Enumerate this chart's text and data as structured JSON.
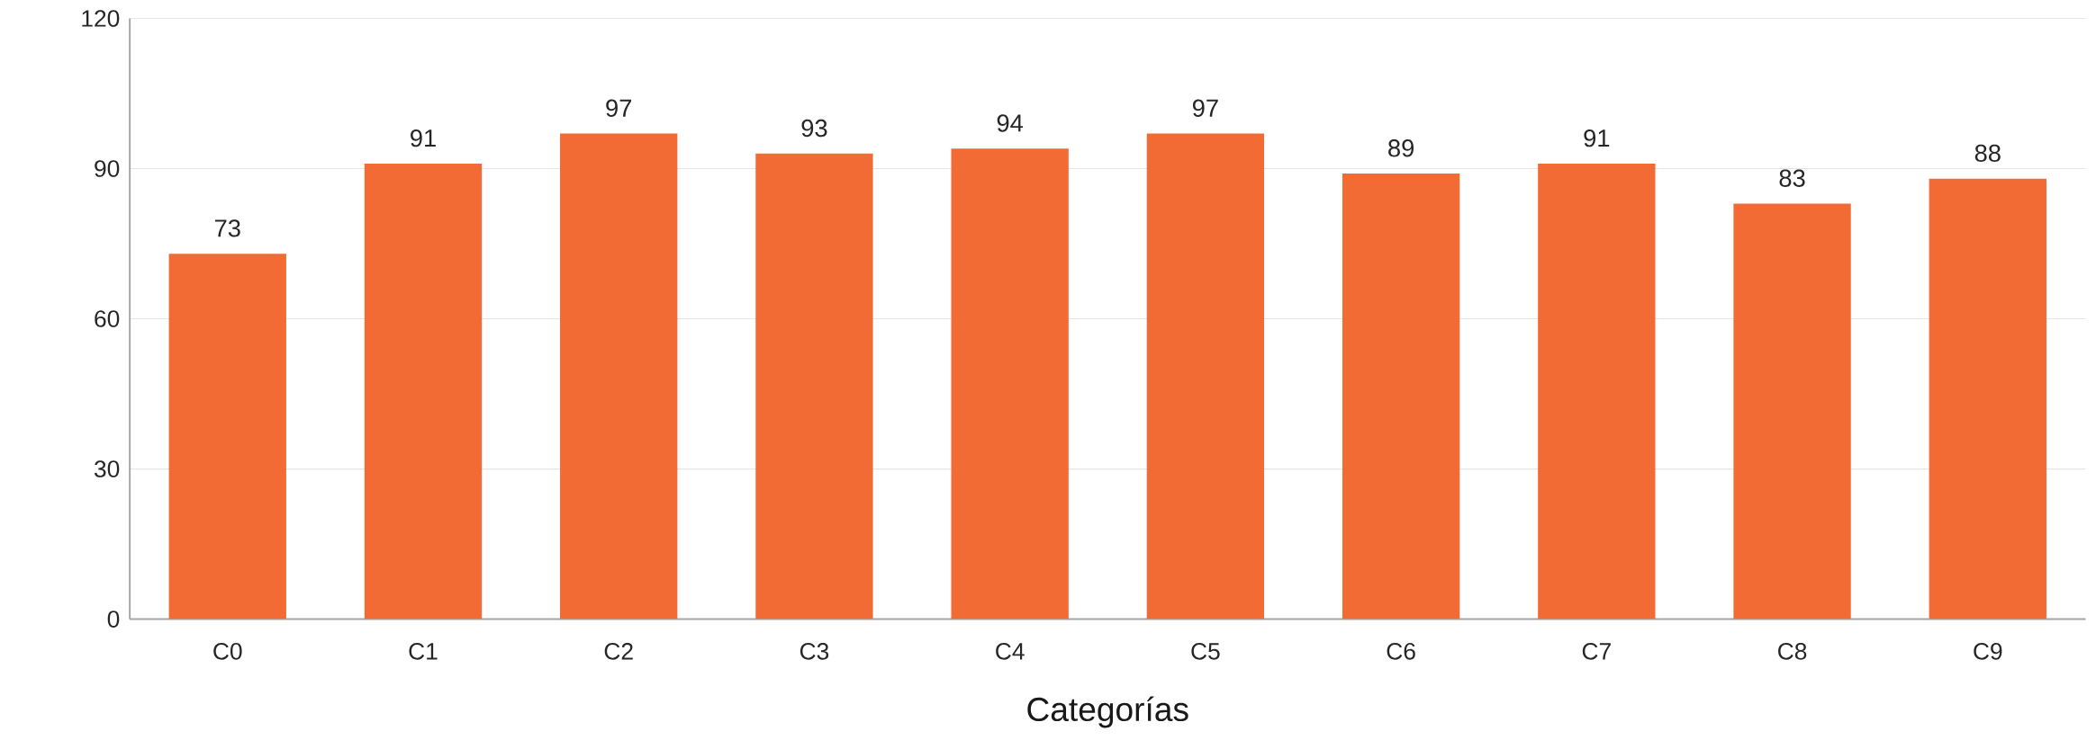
{
  "chart_data": {
    "type": "bar",
    "xlabel": "Categorías",
    "categories": [
      "C0",
      "C1",
      "C2",
      "C3",
      "C4",
      "C5",
      "C6",
      "C7",
      "C8",
      "C9"
    ],
    "values": [
      73,
      91,
      97,
      93,
      94,
      97,
      89,
      91,
      83,
      88
    ],
    "color": "#f26b35",
    "ylim": [
      0,
      120
    ],
    "yticks": [
      0,
      30,
      60,
      90,
      120
    ],
    "grid": "y",
    "data_labels": true
  }
}
